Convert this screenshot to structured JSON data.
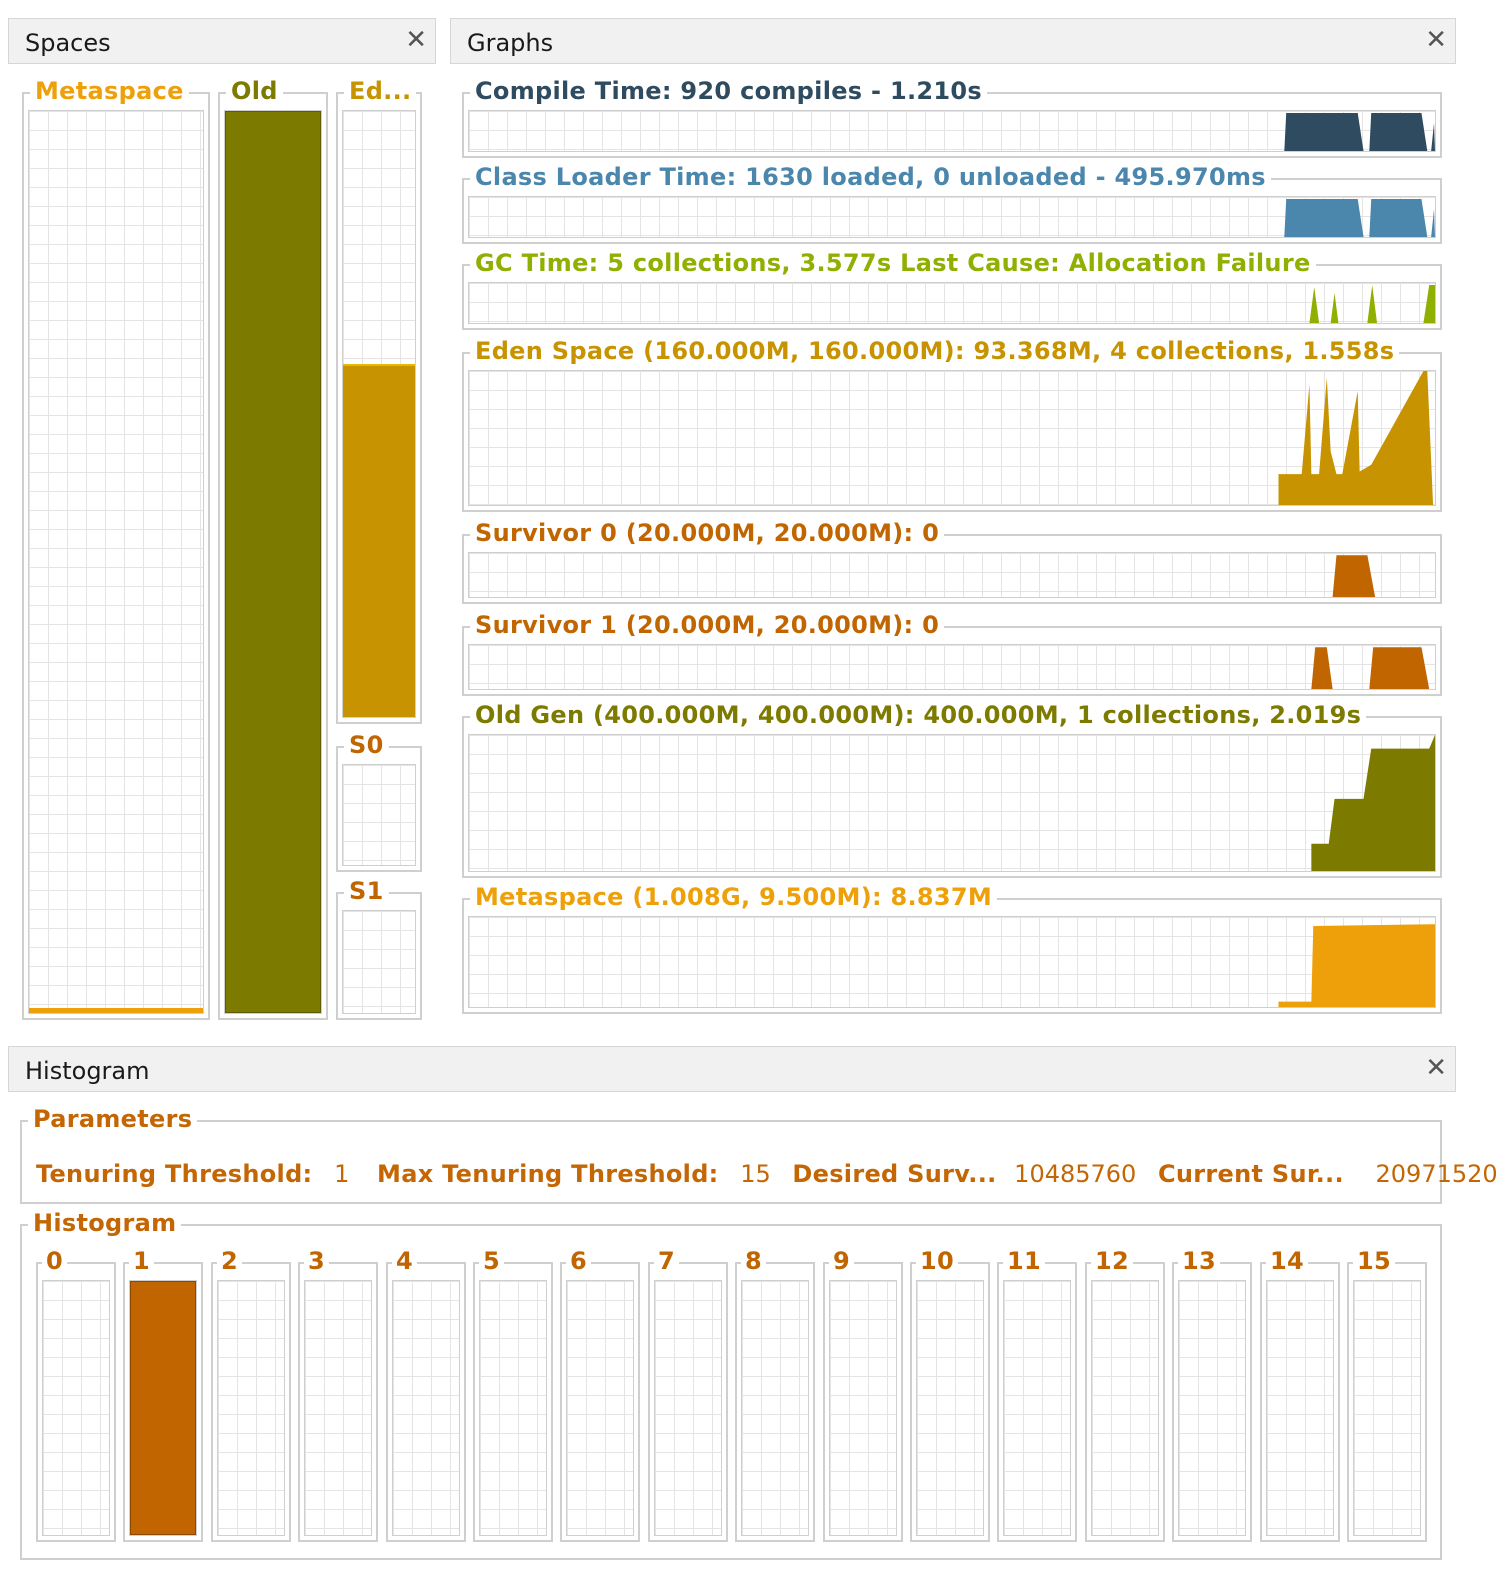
{
  "colors": {
    "compile": "#2e4b60",
    "classloader": "#4b86ad",
    "gc": "#8fb000",
    "eden": "#c79300",
    "survivor": "#c06500",
    "old": "#7d7a00",
    "metaspace": "#eda00a",
    "histogram": "#c06500"
  },
  "spaces": {
    "title": "Spaces",
    "close_icon": "close-icon",
    "metaspace": {
      "label": "Metaspace",
      "fill": 0.006
    },
    "old": {
      "label": "Old",
      "fill": 1.0
    },
    "eden": {
      "label": "Ed...",
      "fill": 0.583
    },
    "s0": {
      "label": "S0",
      "fill": 0
    },
    "s1": {
      "label": "S1",
      "fill": 0
    }
  },
  "graphs": {
    "title": "Graphs",
    "close_icon": "close-icon",
    "compile_time": {
      "label": "Compile Time: 920 compiles - 1.210s"
    },
    "class_loader": {
      "label": "Class Loader Time: 1630 loaded, 0 unloaded - 495.970ms"
    },
    "gc_time": {
      "label": "GC Time: 5 collections, 3.577s  Last Cause: Allocation Failure"
    },
    "eden": {
      "label": "Eden Space (160.000M, 160.000M): 93.368M, 4 collections, 1.558s"
    },
    "survivor0": {
      "label": "Survivor 0 (20.000M, 20.000M): 0"
    },
    "survivor1": {
      "label": "Survivor 1 (20.000M, 20.000M): 0"
    },
    "old_gen": {
      "label": "Old Gen (400.000M, 400.000M): 400.000M, 1 collections, 2.019s"
    },
    "metaspace": {
      "label": "Metaspace (1.008G, 9.500M): 8.837M"
    }
  },
  "histogram": {
    "title": "Histogram",
    "close_icon": "close-icon",
    "parameters": {
      "title": "Parameters",
      "tenuring_threshold_label": "Tenuring Threshold:",
      "tenuring_threshold_value": "1",
      "max_tenuring_threshold_label": "Max Tenuring Threshold:",
      "max_tenuring_threshold_value": "15",
      "desired_survivor_label": "Desired Surv...",
      "desired_survivor_value": "10485760",
      "current_survivor_label": "Current Sur...",
      "current_survivor_value": "20971520"
    },
    "histogram_group_title": "Histogram",
    "bins": [
      {
        "label": "0",
        "fill": 0
      },
      {
        "label": "1",
        "fill": 1.0
      },
      {
        "label": "2",
        "fill": 0
      },
      {
        "label": "3",
        "fill": 0
      },
      {
        "label": "4",
        "fill": 0
      },
      {
        "label": "5",
        "fill": 0
      },
      {
        "label": "6",
        "fill": 0
      },
      {
        "label": "7",
        "fill": 0
      },
      {
        "label": "8",
        "fill": 0
      },
      {
        "label": "9",
        "fill": 0
      },
      {
        "label": "10",
        "fill": 0
      },
      {
        "label": "11",
        "fill": 0
      },
      {
        "label": "12",
        "fill": 0
      },
      {
        "label": "13",
        "fill": 0
      },
      {
        "label": "14",
        "fill": 0
      },
      {
        "label": "15",
        "fill": 0
      }
    ]
  }
}
